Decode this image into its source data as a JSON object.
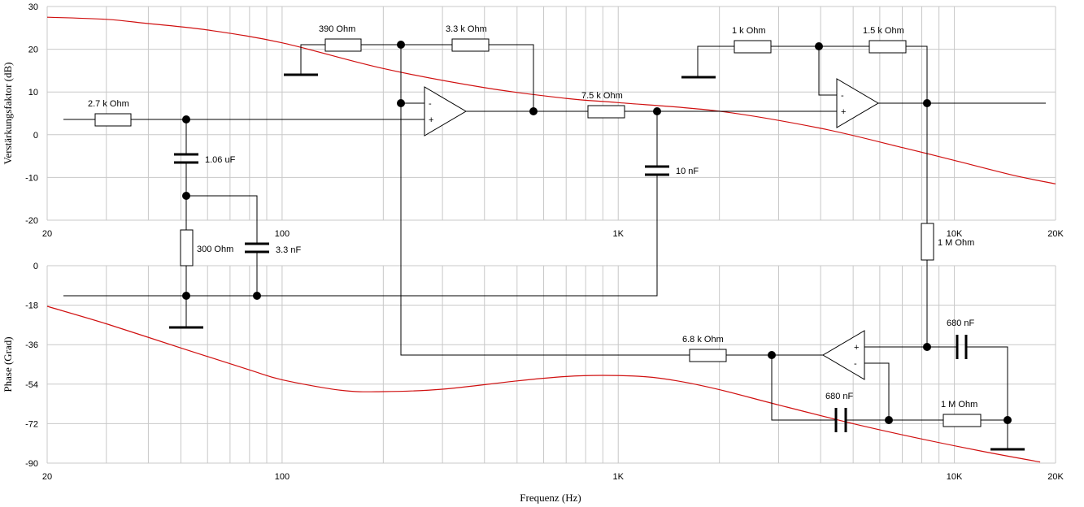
{
  "chart_data": [
    {
      "type": "line",
      "xlabel": "",
      "ylabel": "Verstärkungsfaktor (dB)",
      "xscale": "log",
      "xlim": [
        20,
        20000
      ],
      "ylim": [
        -20,
        30
      ],
      "x_tick_labels": [
        "20",
        "100",
        "1K",
        "10K",
        "20K"
      ],
      "y_tick_labels": [
        "30",
        "20",
        "10",
        "0",
        "-10",
        "-20"
      ],
      "grid": true,
      "series": [
        {
          "color": "#d01010",
          "x": [
            20,
            30,
            40,
            60,
            100,
            200,
            400,
            700,
            1000,
            2000,
            4000,
            7000,
            10000,
            15000,
            20000
          ],
          "y": [
            27.5,
            27.0,
            26.0,
            24.5,
            21.5,
            15.5,
            11.0,
            8.5,
            7.5,
            5.5,
            1.5,
            -3.0,
            -6.0,
            -9.5,
            -11.5
          ]
        }
      ]
    },
    {
      "type": "line",
      "xlabel": "Frequenz (Hz)",
      "ylabel": "Phase (Grad)",
      "xscale": "log",
      "xlim": [
        20,
        20000
      ],
      "ylim": [
        -90,
        0
      ],
      "x_tick_labels": [
        "20",
        "100",
        "1K",
        "10K",
        "20K"
      ],
      "y_tick_labels": [
        "0",
        "-18",
        "-36",
        "-54",
        "-72",
        "-90"
      ],
      "grid": true,
      "series": [
        {
          "color": "#d01010",
          "x": [
            20,
            30,
            50,
            80,
            100,
            150,
            200,
            300,
            500,
            700,
            900,
            1200,
            1500,
            2000,
            3000,
            5000,
            8000,
            12000,
            18000
          ],
          "y": [
            -18.5,
            -26.5,
            -37.5,
            -47.5,
            -52.0,
            -56.8,
            -57.4,
            -56.3,
            -52.5,
            -50.5,
            -50.0,
            -50.6,
            -52.5,
            -56.5,
            -63.5,
            -72.0,
            -79.0,
            -84.5,
            -89.5
          ]
        }
      ]
    }
  ],
  "circuit": {
    "components": {
      "r_in": "2.7 k Ohm",
      "c_coupling": "1.06 uF",
      "r_shunt": "300  Ohm",
      "c_shunt": "3.3 nF",
      "r_gain1_ground": "390  Ohm",
      "r_gain1_feedback": "3.3 k Ohm",
      "r_series": "7.5 k Ohm",
      "c_filter": "10 nF",
      "r_gain2_ground": "1 k Ohm",
      "r_gain2_feedback": "1.5 k Ohm",
      "r_bias": "1 M Ohm",
      "c_out": "680 nF",
      "r_return": "6.8 k Ohm",
      "c_return": "680 nF",
      "r_load": "1 M Ohm"
    },
    "opamp_plus": "+",
    "opamp_minus": "-"
  }
}
